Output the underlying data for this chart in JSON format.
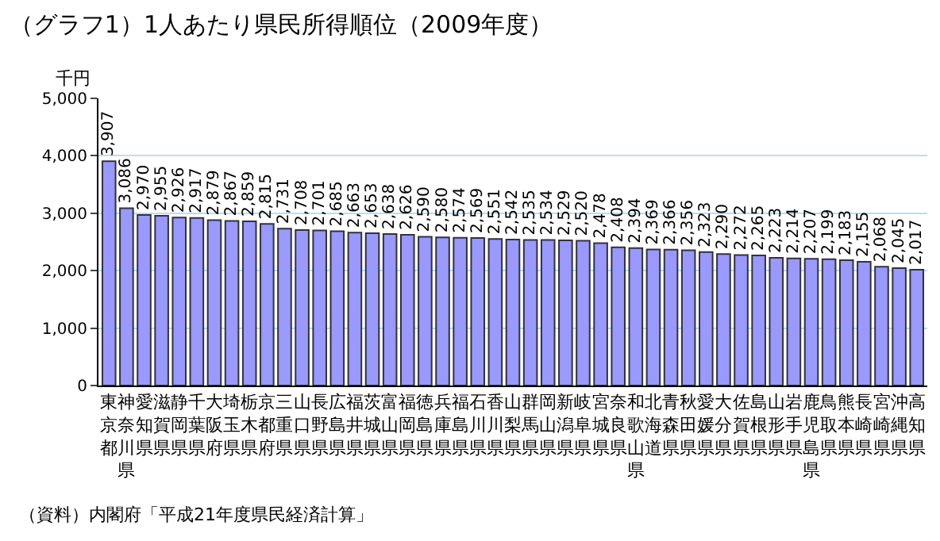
{
  "chart_data": {
    "type": "bar",
    "title": "（グラフ1）1人あたり県民所得順位（2009年度）",
    "ylabel": "千円",
    "categories": [
      "東京都",
      "神奈川県",
      "愛知県",
      "滋賀県",
      "静岡県",
      "千葉県",
      "大阪府",
      "埼玉県",
      "栃木県",
      "京都府",
      "三重県",
      "山口県",
      "長野県",
      "広島県",
      "福井県",
      "茨城県",
      "富山県",
      "福岡県",
      "徳島県",
      "兵庫県",
      "福島県",
      "石川県",
      "香川県",
      "山梨県",
      "群馬県",
      "岡山県",
      "新潟県",
      "岐阜県",
      "宮城県",
      "奈良県",
      "和歌山県",
      "北海道",
      "青森県",
      "秋田県",
      "愛媛県",
      "大分県",
      "佐賀県",
      "島根県",
      "山形県",
      "岩手県",
      "鹿児島県",
      "鳥取県",
      "熊本県",
      "長崎県",
      "宮崎県",
      "沖縄県",
      "高知県"
    ],
    "values": [
      3907,
      3086,
      2970,
      2955,
      2926,
      2917,
      2879,
      2867,
      2859,
      2815,
      2731,
      2708,
      2701,
      2685,
      2663,
      2653,
      2638,
      2626,
      2590,
      2580,
      2574,
      2569,
      2551,
      2542,
      2535,
      2534,
      2529,
      2520,
      2478,
      2408,
      2394,
      2369,
      2366,
      2356,
      2323,
      2290,
      2272,
      2265,
      2223,
      2214,
      2207,
      2199,
      2183,
      2155,
      2068,
      2045,
      2017
    ],
    "color": "#9999ff",
    "value_labels": [
      "3,907",
      "3,086",
      "2,970",
      "2,955",
      "2,926",
      "2,917",
      "2,879",
      "2,867",
      "2,859",
      "2,815",
      "2,731",
      "2,708",
      "2,701",
      "2,685",
      "2,663",
      "2,653",
      "2,638",
      "2,626",
      "2,590",
      "2,580",
      "2,574",
      "2,569",
      "2,551",
      "2,542",
      "2,535",
      "2,534",
      "2,529",
      "2,520",
      "2,478",
      "2,408",
      "2,394",
      "2,369",
      "2,366",
      "2,356",
      "2,323",
      "2,290",
      "2,272",
      "2,265",
      "2,223",
      "2,214",
      "2,207",
      "2,199",
      "2,183",
      "2,155",
      "2,068",
      "2,045",
      "2,017"
    ],
    "ylim": [
      0,
      5000
    ],
    "yticks": [
      {
        "value": 0,
        "label": "0"
      },
      {
        "value": 1000,
        "label": "1,000"
      },
      {
        "value": 2000,
        "label": "2,000"
      },
      {
        "value": 3000,
        "label": "3,000"
      },
      {
        "value": 4000,
        "label": "4,000"
      },
      {
        "value": 5000,
        "label": "5,000"
      }
    ],
    "grid": "y",
    "annotations": [
      "（資料）内閣府「平成21年度県民経済計算」"
    ]
  }
}
